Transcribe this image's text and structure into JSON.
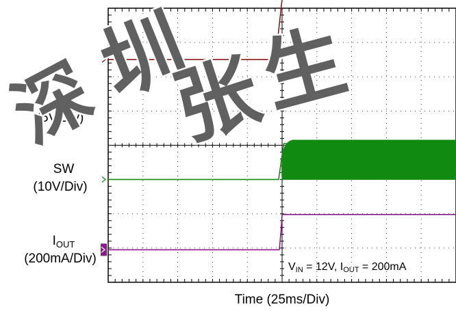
{
  "chart_data": {
    "type": "line",
    "xlabel": "Time (25ms/Div)",
    "x_div": 10,
    "y_div": 8,
    "annotation": {
      "parts": [
        {
          "t": "V",
          "sub": false
        },
        {
          "t": "IN",
          "sub": true
        },
        {
          "t": " = 12V, I",
          "sub": false
        },
        {
          "t": "OUT",
          "sub": true
        },
        {
          "t": " = 200mA",
          "sub": false
        }
      ]
    },
    "series": [
      {
        "key": "vin",
        "label_main": "V",
        "label_sub": "IN",
        "scale": "(5V/Div)",
        "color": "#8b1a1a",
        "marker_div": 6.5,
        "points": [
          [
            0,
            6.5
          ],
          [
            4.72,
            6.5
          ],
          [
            4.85,
            6.9
          ],
          [
            4.95,
            7.8
          ],
          [
            5.02,
            8.45
          ],
          [
            5.1,
            8.55
          ],
          [
            10,
            8.55
          ]
        ]
      },
      {
        "key": "sw",
        "label_main": "SW",
        "label_sub": "",
        "scale": "(10V/Div)",
        "color": "#118a11",
        "marker_div": 3.0,
        "points": [
          [
            0,
            3.0
          ],
          [
            4.9,
            3.0
          ],
          [
            4.97,
            3.5
          ],
          [
            5.05,
            4.05
          ],
          [
            10,
            4.05
          ]
        ],
        "band": {
          "x_start": 5.0,
          "x_end": 10,
          "low": 3.0,
          "high": 4.15
        }
      },
      {
        "key": "iout",
        "label_main": "I",
        "label_sub": "OUT",
        "scale": "(200mA/Div)",
        "color": "#8a1a8a",
        "marker_div": 0.95,
        "points": [
          [
            0,
            0.95
          ],
          [
            4.92,
            0.95
          ],
          [
            4.97,
            1.5
          ],
          [
            5.0,
            1.98
          ],
          [
            10,
            1.98
          ]
        ]
      }
    ]
  },
  "watermark": {
    "text": "深圳张生",
    "color": "#444444"
  }
}
